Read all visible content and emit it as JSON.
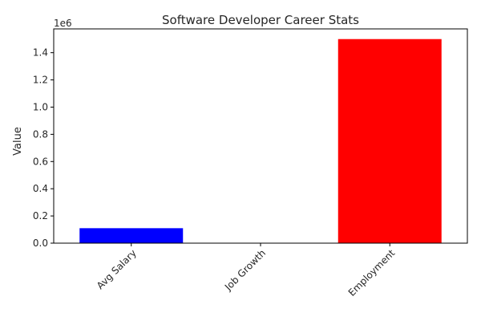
{
  "chart_data": {
    "type": "bar",
    "title": "Software Developer Career Stats",
    "xlabel": "",
    "ylabel": "Value",
    "axis_multiplier": "1e6",
    "categories": [
      "Avg Salary",
      "Job Growth",
      "Employment"
    ],
    "values": [
      110000,
      22,
      1500000
    ],
    "colors": [
      "#0000ff",
      "#008000",
      "#ff0000"
    ],
    "ylim": [
      0,
      1575000
    ],
    "yticks": [
      {
        "value": 0,
        "label": "0.0"
      },
      {
        "value": 200000,
        "label": "0.2"
      },
      {
        "value": 400000,
        "label": "0.4"
      },
      {
        "value": 600000,
        "label": "0.6"
      },
      {
        "value": 800000,
        "label": "0.8"
      },
      {
        "value": 1000000,
        "label": "1.0"
      },
      {
        "value": 1200000,
        "label": "1.2"
      },
      {
        "value": 1400000,
        "label": "1.4"
      }
    ],
    "grid": false,
    "legend": "none"
  }
}
